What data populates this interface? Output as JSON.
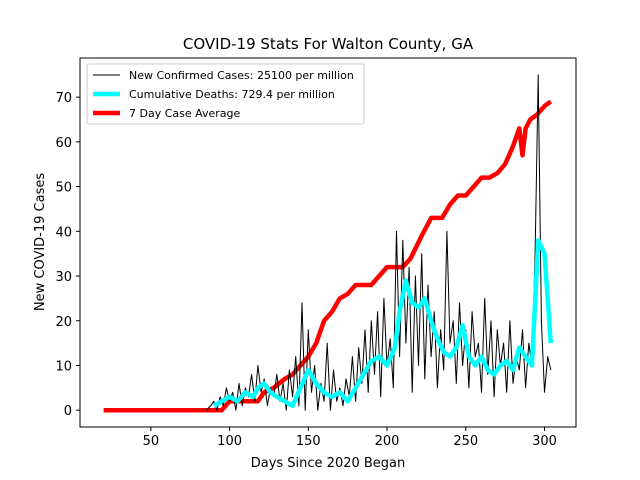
{
  "chart_data": {
    "type": "line",
    "title": "COVID-19 Stats For Walton County, GA",
    "xlabel": "Days Since 2020 Began",
    "ylabel": "New COVID-19 Cases",
    "xlim": [
      5,
      320
    ],
    "ylim": [
      -3.75,
      78.75
    ],
    "xticks": [
      50,
      100,
      150,
      200,
      250,
      300
    ],
    "yticks": [
      0,
      10,
      20,
      30,
      40,
      50,
      60,
      70
    ],
    "grid": false,
    "legend_position": "top-left",
    "series": [
      {
        "name": "New Confirmed Cases: 25100 per million",
        "color": "#000000",
        "style": "thin",
        "x": [
          85,
          88,
          90,
          92,
          94,
          96,
          98,
          100,
          102,
          104,
          106,
          108,
          110,
          112,
          114,
          116,
          118,
          120,
          122,
          124,
          126,
          128,
          130,
          132,
          134,
          136,
          138,
          140,
          142,
          144,
          146,
          148,
          150,
          152,
          154,
          156,
          158,
          160,
          162,
          164,
          166,
          168,
          170,
          172,
          174,
          176,
          178,
          180,
          182,
          184,
          186,
          188,
          190,
          192,
          194,
          196,
          198,
          200,
          202,
          204,
          206,
          208,
          210,
          212,
          214,
          216,
          218,
          220,
          222,
          224,
          226,
          228,
          230,
          232,
          234,
          236,
          238,
          240,
          242,
          244,
          246,
          248,
          250,
          252,
          254,
          256,
          258,
          260,
          262,
          264,
          266,
          268,
          270,
          272,
          274,
          276,
          278,
          280,
          282,
          284,
          286,
          288,
          290,
          292,
          294,
          296,
          298,
          300,
          302,
          304
        ],
        "y": [
          0,
          1,
          2,
          0,
          3,
          1,
          5,
          2,
          4,
          0,
          6,
          1,
          5,
          3,
          8,
          2,
          10,
          4,
          7,
          1,
          5,
          3,
          8,
          2,
          6,
          0,
          9,
          3,
          12,
          1,
          24,
          0,
          18,
          4,
          10,
          0,
          6,
          2,
          15,
          0,
          9,
          2,
          5,
          1,
          7,
          3,
          12,
          2,
          14,
          6,
          18,
          4,
          20,
          8,
          22,
          3,
          25,
          10,
          16,
          5,
          40,
          12,
          38,
          15,
          32,
          4,
          30,
          10,
          35,
          7,
          28,
          12,
          22,
          5,
          18,
          9,
          40,
          15,
          20,
          6,
          24,
          10,
          18,
          5,
          22,
          12,
          15,
          4,
          25,
          8,
          20,
          3,
          18,
          10,
          15,
          4,
          20,
          6,
          12,
          9,
          18,
          5,
          15,
          10,
          35,
          75,
          20,
          4,
          12,
          9
        ]
      },
      {
        "name": "Cumulative Deaths: 729.4 per million",
        "color": "#00ffff",
        "style": "thick",
        "x": [
          90,
          95,
          100,
          105,
          110,
          115,
          118,
          122,
          126,
          130,
          135,
          140,
          145,
          150,
          155,
          160,
          165,
          170,
          175,
          180,
          185,
          190,
          195,
          200,
          205,
          208,
          212,
          216,
          220,
          224,
          228,
          232,
          236,
          240,
          244,
          248,
          252,
          256,
          260,
          264,
          268,
          272,
          276,
          280,
          284,
          288,
          292,
          296,
          300,
          304
        ],
        "y": [
          1,
          2,
          3,
          2,
          4,
          3,
          5,
          6,
          4,
          3,
          2,
          1,
          5,
          9,
          6,
          4,
          3,
          4,
          2,
          5,
          8,
          11,
          12,
          10,
          14,
          22,
          29,
          24,
          23,
          25,
          20,
          16,
          13,
          12,
          14,
          19,
          12,
          10,
          12,
          9,
          8,
          10,
          11,
          9,
          14,
          12,
          10,
          38,
          35,
          15
        ]
      },
      {
        "name": "7 Day Case Average",
        "color": "#ff0000",
        "style": "thick",
        "x": [
          20,
          95,
          100,
          118,
          122,
          128,
          135,
          140,
          145,
          150,
          155,
          160,
          165,
          170,
          175,
          180,
          185,
          190,
          200,
          205,
          210,
          215,
          222,
          228,
          235,
          240,
          245,
          250,
          255,
          260,
          265,
          270,
          275,
          280,
          284,
          286,
          288,
          291,
          295,
          300,
          304
        ],
        "y": [
          0,
          0,
          2,
          2,
          4,
          5,
          7,
          8,
          10,
          12,
          15,
          20,
          22,
          25,
          26,
          28,
          28,
          28,
          32,
          32,
          32,
          34,
          39,
          43,
          43,
          46,
          48,
          48,
          50,
          52,
          52,
          53,
          55,
          59,
          63,
          57,
          63,
          65,
          66,
          68,
          69
        ]
      }
    ]
  }
}
